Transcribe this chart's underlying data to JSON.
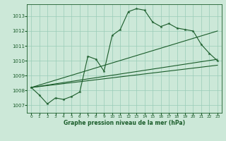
{
  "title": "Graphe pression niveau de la mer (hPa)",
  "bg_color": "#cce8d8",
  "grid_color": "#99ccb8",
  "line_color": "#1a5c2a",
  "xlim": [
    -0.5,
    23.5
  ],
  "ylim": [
    1006.5,
    1013.8
  ],
  "yticks": [
    1007,
    1008,
    1009,
    1010,
    1011,
    1012,
    1013
  ],
  "xticks": [
    0,
    1,
    2,
    3,
    4,
    5,
    6,
    7,
    8,
    9,
    10,
    11,
    12,
    13,
    14,
    15,
    16,
    17,
    18,
    19,
    20,
    21,
    22,
    23
  ],
  "main_data": [
    1008.2,
    1007.7,
    1007.1,
    1007.5,
    1007.4,
    1007.6,
    1007.9,
    1010.3,
    1010.1,
    1009.3,
    1011.7,
    1012.1,
    1013.3,
    1013.5,
    1013.4,
    1012.6,
    1012.3,
    1012.5,
    1012.2,
    1012.1,
    1012.0,
    1011.1,
    1010.5,
    1010.0
  ],
  "trend_lines": [
    {
      "x0": 0,
      "y0": 1008.2,
      "x1": 23,
      "y1": 1012.0
    },
    {
      "x0": 0,
      "y0": 1008.2,
      "x1": 23,
      "y1": 1010.1
    },
    {
      "x0": 0,
      "y0": 1008.2,
      "x1": 23,
      "y1": 1009.7
    }
  ]
}
